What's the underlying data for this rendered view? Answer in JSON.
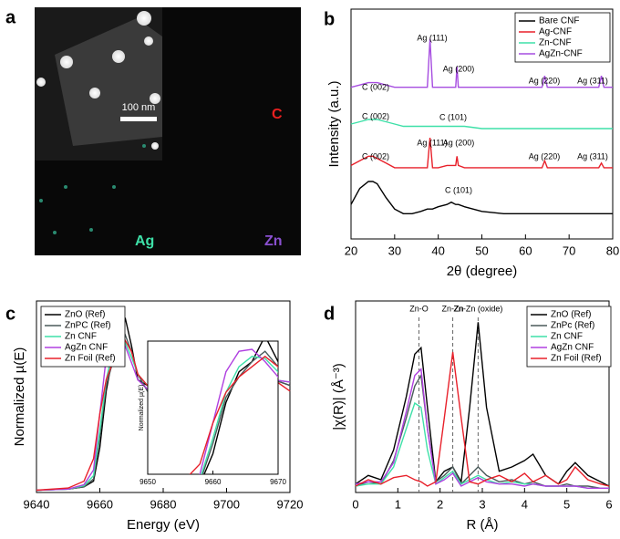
{
  "image_panel": {
    "panel_label": "a",
    "scale_bar": "100 nm",
    "labels": [
      "C",
      "Ag",
      "Zn"
    ]
  },
  "chart_data": [
    {
      "type": "line",
      "panel_label": "b",
      "xlabel": "2θ (degree)",
      "ylabel": "Intensity (a.u.)",
      "xlim": [
        20,
        80
      ],
      "xticks": [
        20,
        30,
        40,
        50,
        60,
        70,
        80
      ],
      "ylim": [
        0,
        100
      ],
      "legend": "upper right",
      "x": [
        20,
        22,
        24,
        25,
        26,
        28,
        30,
        32,
        34,
        36,
        37.5,
        38.1,
        38.7,
        40,
        42,
        43,
        44,
        44.3,
        44.6,
        46,
        50,
        55,
        60,
        63.8,
        64.4,
        65,
        70,
        75,
        76.8,
        77.4,
        78,
        80
      ],
      "series": [
        {
          "name": "Bare CNF",
          "color": "#000000",
          "values": [
            15,
            22,
            25,
            25,
            24,
            18,
            13,
            11,
            11,
            12,
            13,
            13,
            13,
            14,
            15,
            16,
            15,
            15,
            15,
            14,
            12,
            11,
            11,
            11,
            11,
            11,
            11,
            11,
            11,
            11,
            11,
            11
          ]
        },
        {
          "name": "Ag-CNF",
          "color": "#e8202a",
          "values": [
            32,
            34,
            36,
            36,
            35,
            33,
            31,
            31,
            31,
            31,
            31,
            44,
            31,
            31,
            32,
            32,
            32,
            36,
            32,
            31,
            31,
            31,
            31,
            31,
            34,
            31,
            31,
            31,
            31,
            33,
            31,
            31
          ]
        },
        {
          "name": "Zn-CNF",
          "color": "#3ee0a8",
          "values": [
            50,
            51,
            52,
            52,
            52,
            51,
            50,
            49,
            49,
            49,
            49,
            49,
            49,
            49,
            49,
            49,
            49,
            49,
            49,
            49,
            48,
            48,
            48,
            48,
            48,
            48,
            48,
            48,
            48,
            48,
            48,
            48
          ]
        },
        {
          "name": "AgZn-CNF",
          "color": "#a64de0",
          "values": [
            66,
            67,
            68,
            68,
            68,
            67,
            66,
            66,
            66,
            66,
            66,
            87,
            66,
            66,
            66,
            66,
            66,
            75,
            66,
            66,
            66,
            66,
            66,
            66,
            71,
            66,
            66,
            66,
            66,
            71,
            66,
            66
          ]
        }
      ],
      "annotations": [
        "C (002)",
        "Ag (111)",
        "Ag (200)",
        "Ag (220)",
        "Ag (311)",
        "C (002)",
        "C (101)",
        "Ag (111)",
        "Ag (200)",
        "C (002)",
        "Ag (220)",
        "Ag (311)",
        "C (101)"
      ]
    },
    {
      "type": "line",
      "panel_label": "c",
      "xlabel": "Energy (eV)",
      "ylabel": "Normalized µ(E)",
      "xlim": [
        9640,
        9720
      ],
      "xticks": [
        9640,
        9660,
        9680,
        9700,
        9720
      ],
      "ylim": [
        0,
        1.7
      ],
      "legend": "upper left",
      "x": [
        9640,
        9650,
        9655,
        9658,
        9660,
        9662,
        9664,
        9666,
        9668,
        9670,
        9672,
        9675,
        9680,
        9685,
        9690,
        9695,
        9700,
        9705,
        9710,
        9715,
        9720
      ],
      "series": [
        {
          "name": "ZnO (Ref)",
          "color": "#000000",
          "values": [
            0.02,
            0.03,
            0.05,
            0.1,
            0.4,
            0.9,
            1.2,
            1.3,
            1.55,
            1.3,
            1.0,
            0.95,
            1.1,
            1.0,
            0.9,
            0.95,
            1.0,
            1.0,
            1.1,
            1.0,
            0.95
          ]
        },
        {
          "name": "ZnPC (Ref)",
          "color": "#4a5a5a",
          "values": [
            0.02,
            0.03,
            0.05,
            0.12,
            0.5,
            0.95,
            1.15,
            1.3,
            1.4,
            1.25,
            1.05,
            0.9,
            0.95,
            1.0,
            0.92,
            0.9,
            0.95,
            1.0,
            1.05,
            1.0,
            0.95
          ]
        },
        {
          "name": "Zn CNF",
          "color": "#3ee0a8",
          "values": [
            0.02,
            0.03,
            0.06,
            0.15,
            0.55,
            1.0,
            1.25,
            1.35,
            1.33,
            1.2,
            1.05,
            0.95,
            0.92,
            0.95,
            0.95,
            0.98,
            1.0,
            1.02,
            1.03,
            1.0,
            0.98
          ]
        },
        {
          "name": "AgZn CNF",
          "color": "#b040e0",
          "values": [
            0.02,
            0.03,
            0.07,
            0.2,
            0.7,
            1.2,
            1.4,
            1.42,
            1.3,
            1.15,
            1.0,
            0.92,
            0.9,
            0.92,
            0.95,
            0.98,
            1.0,
            1.02,
            1.03,
            1.0,
            0.98
          ]
        },
        {
          "name": "Zn Foil (Ref)",
          "color": "#e8202a",
          "values": [
            0.02,
            0.04,
            0.1,
            0.3,
            0.7,
            1.0,
            1.15,
            1.25,
            1.35,
            1.25,
            1.05,
            0.95,
            0.95,
            0.92,
            0.85,
            0.85,
            0.95,
            1.05,
            1.08,
            1.0,
            0.9
          ]
        }
      ],
      "inset": {
        "ylabel": "Normalized µ(E)",
        "xlim": [
          9650,
          9670
        ],
        "xticks": [
          9650,
          9660,
          9670
        ],
        "ylim": [
          0.2,
          1.5
        ]
      }
    },
    {
      "type": "line",
      "panel_label": "d",
      "xlabel": "R (Å)",
      "ylabel": "|χ(R)| (Å⁻³)",
      "xlim": [
        0,
        6
      ],
      "xticks": [
        0,
        1,
        2,
        3,
        4,
        5,
        6
      ],
      "ylim": [
        0,
        0.9
      ],
      "legend": "upper right",
      "x": [
        0,
        0.3,
        0.6,
        0.9,
        1.2,
        1.4,
        1.55,
        1.7,
        1.9,
        2.1,
        2.3,
        2.5,
        2.7,
        2.9,
        3.1,
        3.4,
        3.7,
        4.0,
        4.2,
        4.5,
        4.8,
        5.0,
        5.2,
        5.5,
        5.8,
        6.0
      ],
      "series": [
        {
          "name": "ZnO (Ref)",
          "color": "#000000",
          "values": [
            0.04,
            0.08,
            0.06,
            0.2,
            0.45,
            0.65,
            0.68,
            0.4,
            0.05,
            0.1,
            0.12,
            0.05,
            0.4,
            0.8,
            0.4,
            0.1,
            0.12,
            0.15,
            0.18,
            0.08,
            0.04,
            0.1,
            0.14,
            0.08,
            0.05,
            0.03
          ]
        },
        {
          "name": "ZnPc (Ref)",
          "color": "#4a5a5a",
          "values": [
            0.03,
            0.05,
            0.04,
            0.15,
            0.35,
            0.5,
            0.55,
            0.3,
            0.05,
            0.08,
            0.12,
            0.04,
            0.08,
            0.12,
            0.08,
            0.05,
            0.06,
            0.04,
            0.05,
            0.03,
            0.03,
            0.04,
            0.03,
            0.03,
            0.02,
            0.02
          ]
        },
        {
          "name": "Zn CNF",
          "color": "#3ee0a8",
          "values": [
            0.03,
            0.04,
            0.04,
            0.12,
            0.3,
            0.42,
            0.4,
            0.2,
            0.04,
            0.07,
            0.1,
            0.04,
            0.06,
            0.08,
            0.06,
            0.04,
            0.05,
            0.04,
            0.04,
            0.03,
            0.03,
            0.03,
            0.03,
            0.02,
            0.02,
            0.02
          ]
        },
        {
          "name": "AgZn CNF",
          "color": "#b040e0",
          "values": [
            0.04,
            0.05,
            0.05,
            0.14,
            0.38,
            0.55,
            0.58,
            0.3,
            0.04,
            0.06,
            0.09,
            0.03,
            0.05,
            0.07,
            0.05,
            0.04,
            0.04,
            0.03,
            0.04,
            0.03,
            0.03,
            0.03,
            0.03,
            0.02,
            0.02,
            0.02
          ]
        },
        {
          "name": "Zn Foil (Ref)",
          "color": "#e8202a",
          "values": [
            0.03,
            0.06,
            0.04,
            0.07,
            0.08,
            0.06,
            0.05,
            0.03,
            0.05,
            0.35,
            0.66,
            0.35,
            0.05,
            0.04,
            0.06,
            0.08,
            0.05,
            0.09,
            0.05,
            0.08,
            0.04,
            0.06,
            0.12,
            0.06,
            0.04,
            0.03
          ]
        }
      ],
      "reference_lines": [
        {
          "value": 1.5,
          "label": "Zn-O"
        },
        {
          "value": 2.3,
          "label": "Zn-Zn"
        },
        {
          "value": 2.9,
          "label": "Zn-Zn (oxide)"
        }
      ]
    }
  ]
}
